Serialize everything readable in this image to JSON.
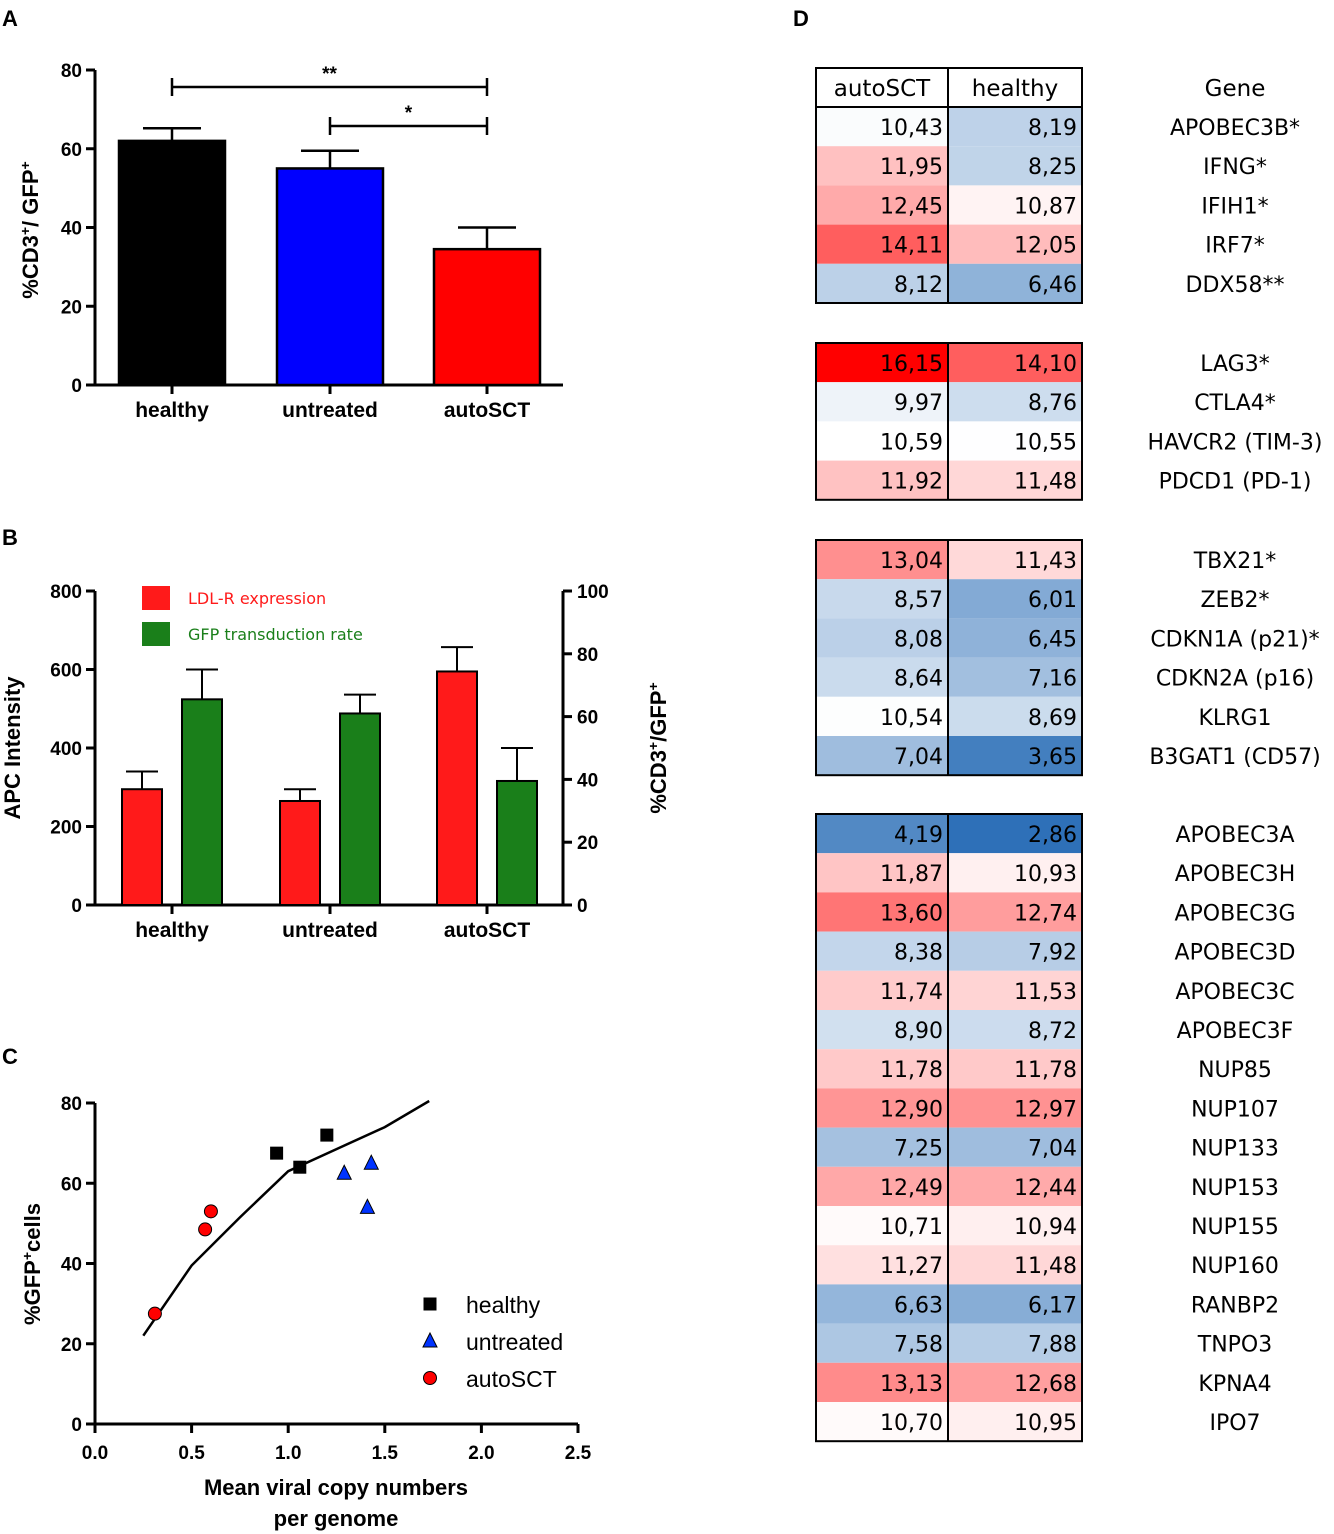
{
  "chart_data": [
    {
      "panel": "A",
      "type": "bar",
      "categories": [
        "healthy",
        "untreated",
        "autoSCT"
      ],
      "values": [
        62,
        55,
        34.5
      ],
      "errors": [
        3.2,
        4.5,
        5.5
      ],
      "colors": [
        "#000000",
        "#0000ff",
        "#ff0000"
      ],
      "ylabel": "%CD3+/ GFP+",
      "ylim": [
        0,
        80
      ],
      "yticks": [
        0,
        20,
        40,
        60,
        80
      ],
      "significance": [
        {
          "from": "healthy",
          "to": "autoSCT",
          "label": "**"
        },
        {
          "from": "untreated",
          "to": "autoSCT",
          "label": "*"
        }
      ]
    },
    {
      "panel": "B",
      "type": "bar",
      "categories": [
        "healthy",
        "untreated",
        "autoSCT"
      ],
      "series": [
        {
          "name": "LDL-R expression",
          "axis": "left",
          "color": "#ff1a1a",
          "values": [
            295,
            265,
            595
          ],
          "errors": [
            45,
            30,
            62
          ]
        },
        {
          "name": "GFP transduction rate",
          "axis": "right",
          "color": "#1a7f1a",
          "values": [
            65.5,
            61,
            39.5
          ],
          "errors": [
            9.5,
            6,
            10.5
          ]
        }
      ],
      "ylabel": "APC Intensity",
      "ylim": [
        0,
        800
      ],
      "yticks": [
        0,
        200,
        400,
        600,
        800
      ],
      "y2label": "%CD3+/GFP+",
      "y2lim": [
        0,
        100
      ],
      "y2ticks": [
        0,
        20,
        40,
        60,
        80,
        100
      ]
    },
    {
      "panel": "C",
      "type": "scatter",
      "xlabel": "Mean viral copy numbers per genome",
      "xlabel_lines": [
        "Mean viral copy numbers",
        "per genome"
      ],
      "ylabel": "%GFP+cells",
      "xlim": [
        0,
        2.5
      ],
      "ylim": [
        0,
        80
      ],
      "xticks": [
        "0.0",
        "0.5",
        "1.0",
        "1.5",
        "2.0",
        "2.5"
      ],
      "yticks": [
        0,
        20,
        40,
        60,
        80
      ],
      "series": [
        {
          "name": "healthy",
          "marker": "square",
          "color": "#000000",
          "points": [
            [
              0.94,
              67.5
            ],
            [
              1.06,
              64
            ],
            [
              1.2,
              72
            ]
          ]
        },
        {
          "name": "untreated",
          "marker": "triangle",
          "color": "#0033ff",
          "points": [
            [
              1.29,
              62.5
            ],
            [
              1.43,
              65
            ],
            [
              1.41,
              54
            ]
          ]
        },
        {
          "name": "autoSCT",
          "marker": "circle",
          "color": "#ff0000",
          "points": [
            [
              0.31,
              27.5
            ],
            [
              0.57,
              48.5
            ],
            [
              0.6,
              53
            ]
          ]
        }
      ],
      "fit_line": [
        [
          0.25,
          22
        ],
        [
          0.5,
          39.5
        ],
        [
          0.75,
          51.5
        ],
        [
          1.0,
          63
        ],
        [
          1.25,
          68.5
        ],
        [
          1.5,
          74
        ],
        [
          1.73,
          80.5
        ]
      ]
    },
    {
      "panel": "D",
      "type": "heatmap",
      "columns": [
        "autoSCT",
        "healthy"
      ],
      "gene_header": "Gene",
      "groups": [
        {
          "rows": [
            {
              "gene": "APOBEC3B*",
              "values": [
                "10,43",
                "8,19"
              ]
            },
            {
              "gene": "IFNG*",
              "values": [
                "11,95",
                "8,25"
              ]
            },
            {
              "gene": "IFIH1*",
              "values": [
                "12,45",
                "10,87"
              ]
            },
            {
              "gene": "IRF7*",
              "values": [
                "14,11",
                "12,05"
              ]
            },
            {
              "gene": "DDX58**",
              "values": [
                "8,12",
                "6,46"
              ]
            }
          ]
        },
        {
          "rows": [
            {
              "gene": "LAG3*",
              "values": [
                "16,15",
                "14,10"
              ]
            },
            {
              "gene": "CTLA4*",
              "values": [
                "9,97",
                "8,76"
              ]
            },
            {
              "gene": "HAVCR2 (TIM-3)",
              "values": [
                "10,59",
                "10,55"
              ]
            },
            {
              "gene": "PDCD1 (PD-1)",
              "values": [
                "11,92",
                "11,48"
              ]
            }
          ]
        },
        {
          "rows": [
            {
              "gene": "TBX21*",
              "values": [
                "13,04",
                "11,43"
              ]
            },
            {
              "gene": "ZEB2*",
              "values": [
                "8,57",
                "6,01"
              ]
            },
            {
              "gene": "CDKN1A (p21)*",
              "values": [
                "8,08",
                "6,45"
              ]
            },
            {
              "gene": "CDKN2A (p16)",
              "values": [
                "8,64",
                "7,16"
              ]
            },
            {
              "gene": "KLRG1",
              "values": [
                "10,54",
                "8,69"
              ]
            },
            {
              "gene": "B3GAT1 (CD57)",
              "values": [
                "7,04",
                "3,65"
              ]
            }
          ]
        },
        {
          "rows": [
            {
              "gene": "APOBEC3A",
              "values": [
                "4,19",
                "2,86"
              ]
            },
            {
              "gene": "APOBEC3H",
              "values": [
                "11,87",
                "10,93"
              ]
            },
            {
              "gene": "APOBEC3G",
              "values": [
                "13,60",
                "12,74"
              ]
            },
            {
              "gene": "APOBEC3D",
              "values": [
                "8,38",
                "7,92"
              ]
            },
            {
              "gene": "APOBEC3C",
              "values": [
                "11,74",
                "11,53"
              ]
            },
            {
              "gene": "APOBEC3F",
              "values": [
                "8,90",
                "8,72"
              ]
            },
            {
              "gene": "NUP85",
              "values": [
                "11,78",
                "11,78"
              ]
            },
            {
              "gene": "NUP107",
              "values": [
                "12,90",
                "12,97"
              ]
            },
            {
              "gene": "NUP133",
              "values": [
                "7,25",
                "7,04"
              ]
            },
            {
              "gene": "NUP153",
              "values": [
                "12,49",
                "12,44"
              ]
            },
            {
              "gene": "NUP155",
              "values": [
                "10,71",
                "10,94"
              ]
            },
            {
              "gene": "NUP160",
              "values": [
                "11,27",
                "11,48"
              ]
            },
            {
              "gene": "RANBP2",
              "values": [
                "6,63",
                "6,17"
              ]
            },
            {
              "gene": "TNPO3",
              "values": [
                "7,58",
                "7,88"
              ]
            },
            {
              "gene": "KPNA4",
              "values": [
                "13,13",
                "12,68"
              ]
            },
            {
              "gene": "IPO7",
              "values": [
                "10,70",
                "10,95"
              ]
            }
          ]
        }
      ]
    }
  ]
}
